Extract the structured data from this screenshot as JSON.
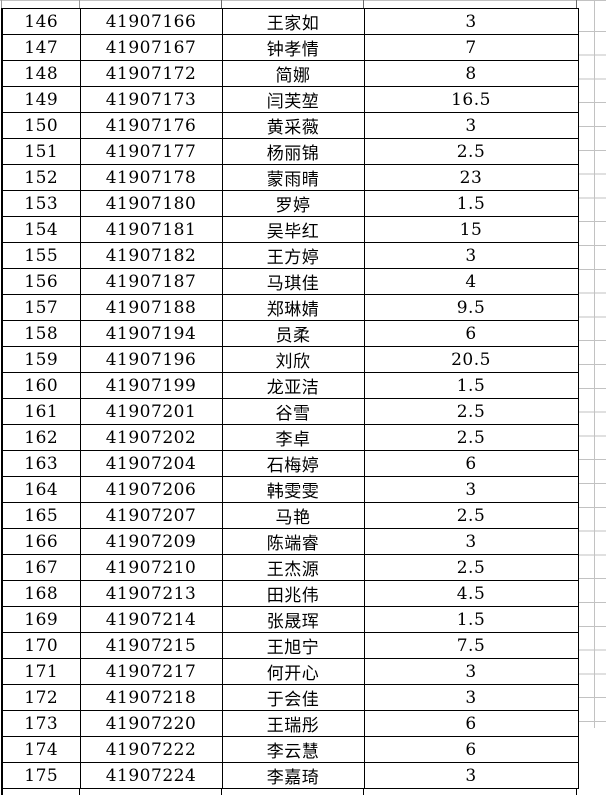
{
  "colors": {
    "border": "#000000",
    "gridline": "#c2c2c2",
    "background": "#ffffff",
    "text": "#000000"
  },
  "table": {
    "column_keys": [
      "row-number",
      "id",
      "name",
      "value"
    ],
    "rows": [
      [
        "146",
        "41907166",
        "王家如",
        "3"
      ],
      [
        "147",
        "41907167",
        "钟孝情",
        "7"
      ],
      [
        "148",
        "41907172",
        "简娜",
        "8"
      ],
      [
        "149",
        "41907173",
        "闫芙堃",
        "16.5"
      ],
      [
        "150",
        "41907176",
        "黄采薇",
        "3"
      ],
      [
        "151",
        "41907177",
        "杨丽锦",
        "2.5"
      ],
      [
        "152",
        "41907178",
        "蒙雨晴",
        "23"
      ],
      [
        "153",
        "41907180",
        "罗婷",
        "1.5"
      ],
      [
        "154",
        "41907181",
        "吴毕红",
        "15"
      ],
      [
        "155",
        "41907182",
        "王方婷",
        "3"
      ],
      [
        "156",
        "41907187",
        "马琪佳",
        "4"
      ],
      [
        "157",
        "41907188",
        "郑琳婧",
        "9.5"
      ],
      [
        "158",
        "41907194",
        "员柔",
        "6"
      ],
      [
        "159",
        "41907196",
        "刘欣",
        "20.5"
      ],
      [
        "160",
        "41907199",
        "龙亚洁",
        "1.5"
      ],
      [
        "161",
        "41907201",
        "谷雪",
        "2.5"
      ],
      [
        "162",
        "41907202",
        "李卓",
        "2.5"
      ],
      [
        "163",
        "41907204",
        "石梅婷",
        "6"
      ],
      [
        "164",
        "41907206",
        "韩雯雯",
        "3"
      ],
      [
        "165",
        "41907207",
        "马艳",
        "2.5"
      ],
      [
        "166",
        "41907209",
        "陈端睿",
        "3"
      ],
      [
        "167",
        "41907210",
        "王杰源",
        "2.5"
      ],
      [
        "168",
        "41907213",
        "田兆伟",
        "4.5"
      ],
      [
        "169",
        "41907214",
        "张晟珲",
        "1.5"
      ],
      [
        "170",
        "41907215",
        "王旭宁",
        "7.5"
      ],
      [
        "171",
        "41907217",
        "何开心",
        "3"
      ],
      [
        "172",
        "41907218",
        "于会佳",
        "3"
      ],
      [
        "173",
        "41907220",
        "王瑞彤",
        "6"
      ],
      [
        "174",
        "41907222",
        "李云慧",
        "6"
      ],
      [
        "175",
        "41907224",
        "李嘉琦",
        "3"
      ]
    ]
  }
}
